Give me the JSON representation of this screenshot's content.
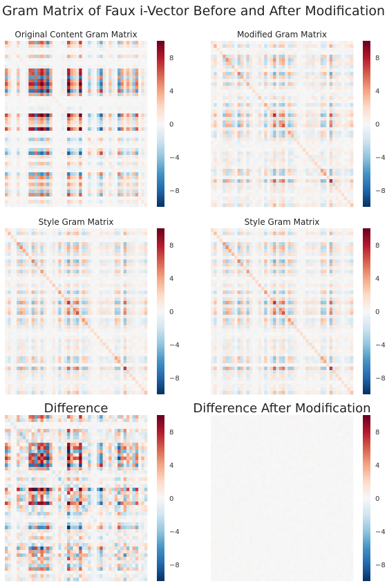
{
  "figure": {
    "title": "Gram Matrix of Faux i-Vector Before and After Modification"
  },
  "colormap": {
    "name": "RdBu_r",
    "low": "#053061",
    "mid": "#f7f7f7",
    "high": "#67001f"
  },
  "chart_data": [
    {
      "type": "heatmap",
      "title": "Original Content Gram Matrix",
      "matrix_size": [
        48,
        48
      ],
      "vmin": -10,
      "vmax": 10,
      "colorbar_ticks": [
        8,
        4,
        0,
        -4,
        -8
      ],
      "colorbar_tick_labels": [
        "8",
        "4",
        "0",
        "−4",
        "−8"
      ],
      "pattern": "strong vertical/horizontal stripes, values range about -8 to 8"
    },
    {
      "type": "heatmap",
      "title": "Modified Gram Matrix",
      "matrix_size": [
        48,
        48
      ],
      "vmin": -10,
      "vmax": 10,
      "colorbar_ticks": [
        8,
        4,
        0,
        -4,
        -8
      ],
      "colorbar_tick_labels": [
        "8",
        "4",
        "0",
        "−4",
        "−8"
      ],
      "pattern": "finer stripes with diagonal, values mostly within -6 to 6"
    },
    {
      "type": "heatmap",
      "title": "Style Gram Matrix",
      "matrix_size": [
        48,
        48
      ],
      "vmin": -10,
      "vmax": 10,
      "colorbar_ticks": [
        8,
        4,
        0,
        -4,
        -8
      ],
      "colorbar_tick_labels": [
        "8",
        "4",
        "0",
        "−4",
        "−8"
      ],
      "pattern": "finer stripes with diagonal, values mostly within -6 to 6"
    },
    {
      "type": "heatmap",
      "title": "Style Gram Matrix",
      "matrix_size": [
        48,
        48
      ],
      "vmin": -10,
      "vmax": 10,
      "colorbar_ticks": [
        8,
        4,
        0,
        -4,
        -8
      ],
      "colorbar_tick_labels": [
        "8",
        "4",
        "0",
        "−4",
        "−8"
      ],
      "pattern": "identical to previous style matrix"
    },
    {
      "type": "heatmap",
      "title": "Difference",
      "matrix_size": [
        48,
        48
      ],
      "vmin": -10,
      "vmax": 10,
      "colorbar_ticks": [
        8,
        4,
        0,
        -4,
        -8
      ],
      "colorbar_tick_labels": [
        "8",
        "4",
        "0",
        "−4",
        "−8"
      ],
      "pattern": "strong mixed red/blue checkered values"
    },
    {
      "type": "heatmap",
      "title": "Difference After Modification",
      "matrix_size": [
        48,
        48
      ],
      "vmin": -10,
      "vmax": 10,
      "colorbar_ticks": [
        8,
        4,
        0,
        -4,
        -8
      ],
      "colorbar_tick_labels": [
        "8",
        "4",
        "0",
        "−4",
        "−8"
      ],
      "pattern": "near zero everywhere, faint pale tints"
    }
  ]
}
